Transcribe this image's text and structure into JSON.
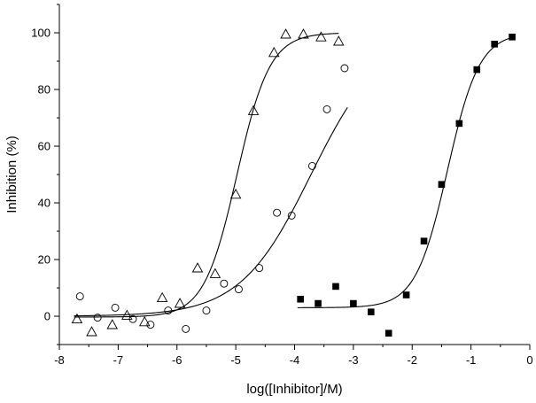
{
  "chart_data": {
    "type": "scatter",
    "title": "",
    "xlabel": "log([Inhibitor]/M)",
    "ylabel": "Inhibition (%)",
    "xlim": [
      -8,
      0
    ],
    "ylim": [
      -10,
      110
    ],
    "x_ticks": [
      "-8",
      "-7",
      "-6",
      "-5",
      "-4",
      "-3",
      "-2",
      "-1",
      "0"
    ],
    "y_ticks": [
      "0",
      "20",
      "40",
      "60",
      "80",
      "100"
    ],
    "grid": false,
    "legend": "none",
    "series": [
      {
        "marker": "open-triangle",
        "color": "#000000",
        "points": [
          [
            -7.7,
            -1
          ],
          [
            -7.45,
            -5.5
          ],
          [
            -7.1,
            -3
          ],
          [
            -6.85,
            0.3
          ],
          [
            -6.55,
            -2
          ],
          [
            -6.25,
            6.5
          ],
          [
            -5.95,
            4.5
          ],
          [
            -5.65,
            17
          ],
          [
            -5.35,
            15
          ],
          [
            -5.0,
            43
          ],
          [
            -4.7,
            72.5
          ],
          [
            -4.35,
            93
          ],
          [
            -4.15,
            99.5
          ],
          [
            -3.85,
            99.5
          ],
          [
            -3.55,
            98.5
          ],
          [
            -3.25,
            97
          ]
        ],
        "fit": {
          "model": "sigmoid",
          "bottom": -0.3,
          "top": 100,
          "logIC50": -4.98,
          "hill": 1.55,
          "x_range": [
            -7.75,
            -3.25
          ]
        }
      },
      {
        "marker": "open-circle",
        "color": "#000000",
        "points": [
          [
            -7.65,
            7
          ],
          [
            -7.35,
            -0.5
          ],
          [
            -7.05,
            3
          ],
          [
            -6.75,
            -1
          ],
          [
            -6.45,
            -3
          ],
          [
            -6.15,
            2
          ],
          [
            -5.85,
            -4.5
          ],
          [
            -5.5,
            2
          ],
          [
            -5.2,
            11.5
          ],
          [
            -4.95,
            9.5
          ],
          [
            -4.6,
            17
          ],
          [
            -4.3,
            36.5
          ],
          [
            -4.05,
            35.5
          ],
          [
            -3.7,
            53
          ],
          [
            -3.45,
            73
          ],
          [
            -3.15,
            87.5
          ]
        ],
        "fit": {
          "model": "sigmoid",
          "bottom": 0,
          "top": 100,
          "logIC50": -3.72,
          "hill": 0.72,
          "x_range": [
            -7.75,
            -3.1
          ]
        }
      },
      {
        "marker": "filled-square",
        "color": "#000000",
        "points": [
          [
            -3.9,
            6
          ],
          [
            -3.6,
            4.5
          ],
          [
            -3.3,
            10.5
          ],
          [
            -3.0,
            4.5
          ],
          [
            -2.7,
            1.5
          ],
          [
            -2.4,
            -6
          ],
          [
            -2.1,
            7.5
          ],
          [
            -1.8,
            26.5
          ],
          [
            -1.5,
            46.5
          ],
          [
            -1.2,
            68
          ],
          [
            -0.9,
            87
          ],
          [
            -0.6,
            96
          ],
          [
            -0.3,
            98.5
          ]
        ],
        "fit": {
          "model": "sigmoid",
          "bottom": 3,
          "top": 100,
          "logIC50": -1.4,
          "hill": 1.6,
          "x_range": [
            -3.95,
            -0.3
          ]
        }
      }
    ]
  }
}
